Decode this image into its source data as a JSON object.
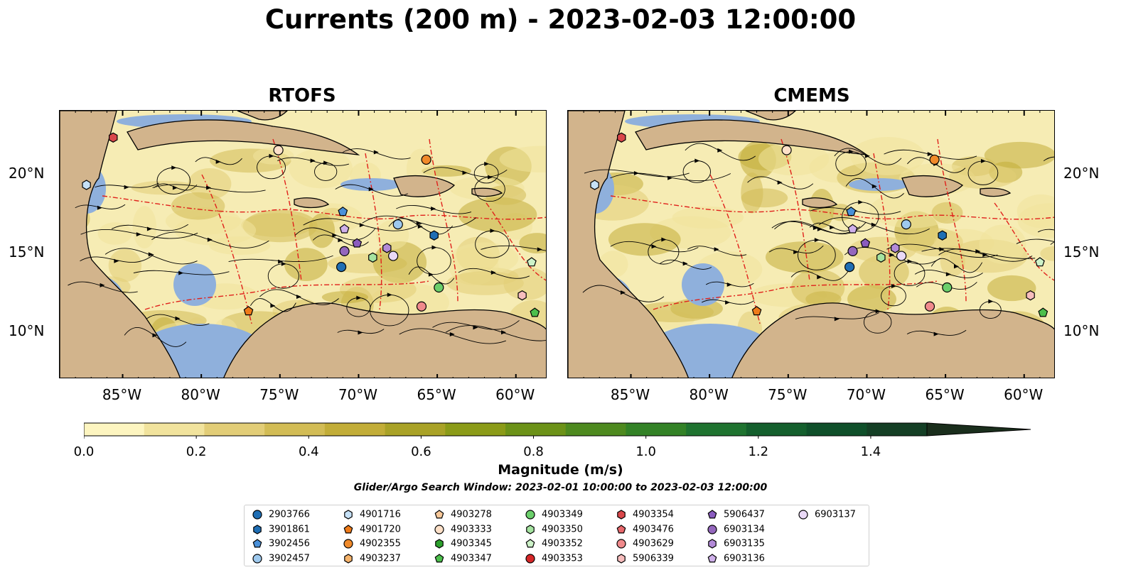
{
  "title": "Currents (200 m) - 2023-02-03 12:00:00",
  "panels": [
    {
      "title": "RTOFS"
    },
    {
      "title": "CMEMS"
    }
  ],
  "axes": {
    "lon_ticks": [
      "85°W",
      "80°W",
      "75°W",
      "70°W",
      "65°W",
      "60°W"
    ],
    "lat_ticks": [
      "20°N",
      "15°N",
      "10°N"
    ]
  },
  "map_style": {
    "land_color": "#d2b48c",
    "shallow_water_color": "#8fb0dc",
    "boundary_color": "#e0201b",
    "streamline_color": "#000000"
  },
  "colorbar": {
    "label": "Magnitude (m/s)",
    "ticks": [
      "0.0",
      "0.2",
      "0.4",
      "0.6",
      "0.8",
      "1.0",
      "1.2",
      "1.4"
    ],
    "range": [
      0.0,
      1.5
    ],
    "extend": "max",
    "colors": [
      "#fdf5c0",
      "#f1e39d",
      "#e2cd77",
      "#d2bc55",
      "#c2ad38",
      "#a9a227",
      "#8b9b18",
      "#6c9218",
      "#4e8a1f",
      "#338227",
      "#1f7330",
      "#145f2d",
      "#0f4f2a",
      "#143f25",
      "#1a2e1c"
    ]
  },
  "search_window": "Glider/Argo Search Window: 2023-02-01 10:00:00 to 2023-02-03 12:00:00",
  "legend": [
    {
      "id": "2903766",
      "marker": "circle",
      "color": "#1f6eb4"
    },
    {
      "id": "3901861",
      "marker": "hexagon",
      "color": "#1f6eb4"
    },
    {
      "id": "3902456",
      "marker": "pentagon",
      "color": "#4a90d9"
    },
    {
      "id": "3902457",
      "marker": "circle",
      "color": "#9ec9ee"
    },
    {
      "id": "4901716",
      "marker": "hexagon",
      "color": "#c6e1f7"
    },
    {
      "id": "4901720",
      "marker": "pentagon",
      "color": "#ef7b1a"
    },
    {
      "id": "4902355",
      "marker": "circle",
      "color": "#f08a2a"
    },
    {
      "id": "4903237",
      "marker": "hexagon",
      "color": "#f5b36b"
    },
    {
      "id": "4903278",
      "marker": "pentagon",
      "color": "#f9c99a"
    },
    {
      "id": "4903333",
      "marker": "circle",
      "color": "#fde0c8"
    },
    {
      "id": "4903345",
      "marker": "hexagon",
      "color": "#2ca02c"
    },
    {
      "id": "4903347",
      "marker": "pentagon",
      "color": "#4cbf4c"
    },
    {
      "id": "4903349",
      "marker": "circle",
      "color": "#6bcf6b"
    },
    {
      "id": "4903350",
      "marker": "hexagon",
      "color": "#a5e3a0"
    },
    {
      "id": "4903352",
      "marker": "pentagon",
      "color": "#cdf2c8"
    },
    {
      "id": "4903353",
      "marker": "circle",
      "color": "#d62728"
    },
    {
      "id": "4903354",
      "marker": "hexagon",
      "color": "#d9474a"
    },
    {
      "id": "4903476",
      "marker": "pentagon",
      "color": "#e8686c"
    },
    {
      "id": "4903629",
      "marker": "circle",
      "color": "#f08a8c"
    },
    {
      "id": "5906339",
      "marker": "hexagon",
      "color": "#f7bdbd"
    },
    {
      "id": "5906437",
      "marker": "pentagon",
      "color": "#8a5bbf"
    },
    {
      "id": "6903134",
      "marker": "circle",
      "color": "#9467bd"
    },
    {
      "id": "6903135",
      "marker": "hexagon",
      "color": "#b38ad8"
    },
    {
      "id": "6903136",
      "marker": "pentagon",
      "color": "#cfb0ea"
    },
    {
      "id": "6903137",
      "marker": "circle",
      "color": "#ead9f7"
    }
  ],
  "floats": [
    {
      "id": "4903354",
      "lon": -85.6,
      "lat": 22.3
    },
    {
      "id": "4901716",
      "lon": -87.3,
      "lat": 19.3
    },
    {
      "id": "4903333",
      "lon": -75.1,
      "lat": 21.5
    },
    {
      "id": "4902355",
      "lon": -65.7,
      "lat": 20.9
    },
    {
      "id": "3902456",
      "lon": -71.0,
      "lat": 17.6
    },
    {
      "id": "3902457",
      "lon": -67.5,
      "lat": 16.8
    },
    {
      "id": "3901861",
      "lon": -65.2,
      "lat": 16.1
    },
    {
      "id": "6903136",
      "lon": -70.9,
      "lat": 16.5
    },
    {
      "id": "5906437",
      "lon": -70.1,
      "lat": 15.6
    },
    {
      "id": "6903134",
      "lon": -70.9,
      "lat": 15.1
    },
    {
      "id": "6903135",
      "lon": -68.2,
      "lat": 15.3
    },
    {
      "id": "6903137",
      "lon": -67.8,
      "lat": 14.8
    },
    {
      "id": "4903350",
      "lon": -69.1,
      "lat": 14.7
    },
    {
      "id": "2903766",
      "lon": -71.1,
      "lat": 14.1
    },
    {
      "id": "4903352",
      "lon": -59.0,
      "lat": 14.4
    },
    {
      "id": "4903349",
      "lon": -64.9,
      "lat": 12.8
    },
    {
      "id": "4903629",
      "lon": -66.0,
      "lat": 11.6
    },
    {
      "id": "5906339",
      "lon": -59.6,
      "lat": 12.3
    },
    {
      "id": "4901720",
      "lon": -77.0,
      "lat": 11.3
    },
    {
      "id": "4903347",
      "lon": -58.8,
      "lat": 11.2
    }
  ]
}
